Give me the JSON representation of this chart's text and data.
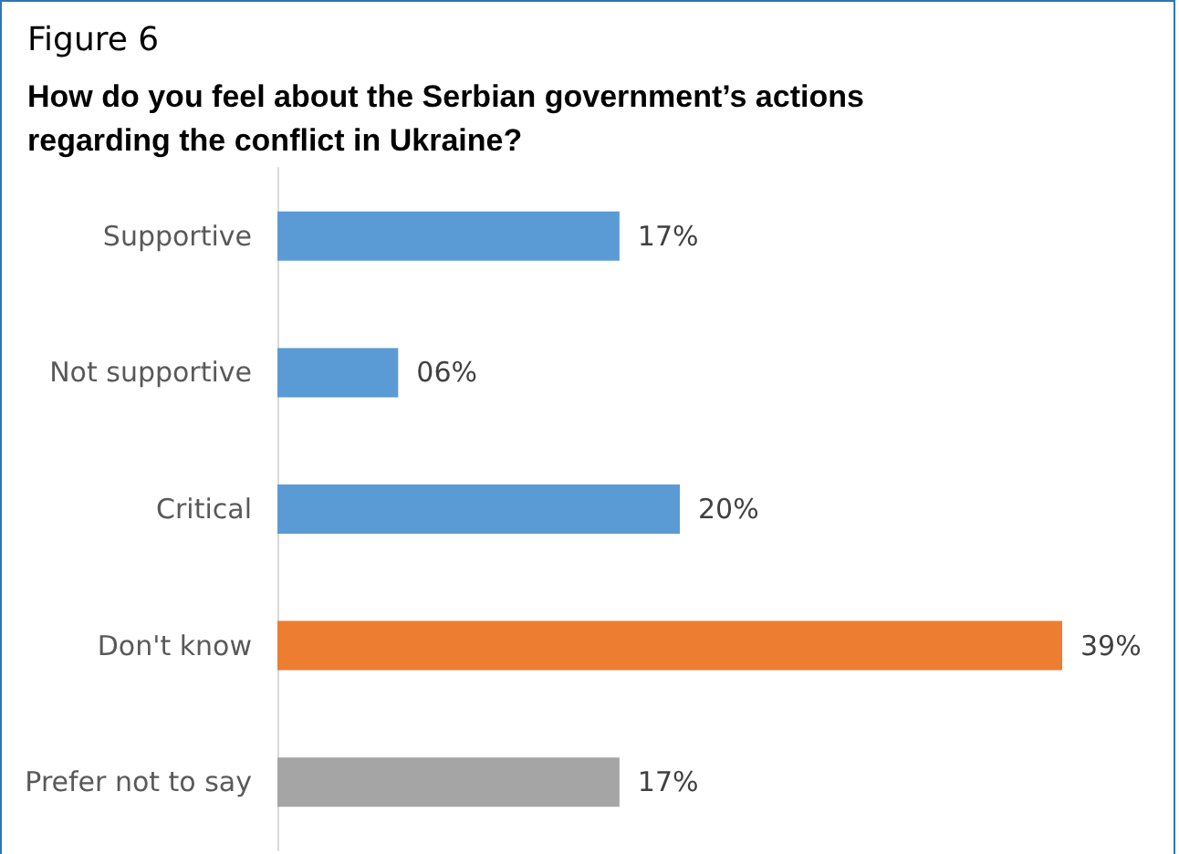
{
  "chart_data": {
    "type": "bar",
    "orientation": "horizontal",
    "title": "Figure 6",
    "subtitle": "How do you feel about the Serbian government’s actions regarding the conflict in Ukraine?",
    "categories": [
      "Supportive",
      "Not supportive",
      "Critical",
      "Don't know",
      "Prefer not to say"
    ],
    "values": [
      17,
      6,
      20,
      39,
      17
    ],
    "value_labels": [
      "17%",
      "06%",
      "20%",
      "39%",
      "17%"
    ],
    "colors": [
      "#5b9bd5",
      "#5b9bd5",
      "#5b9bd5",
      "#ed7d31",
      "#a5a5a5"
    ]
  }
}
